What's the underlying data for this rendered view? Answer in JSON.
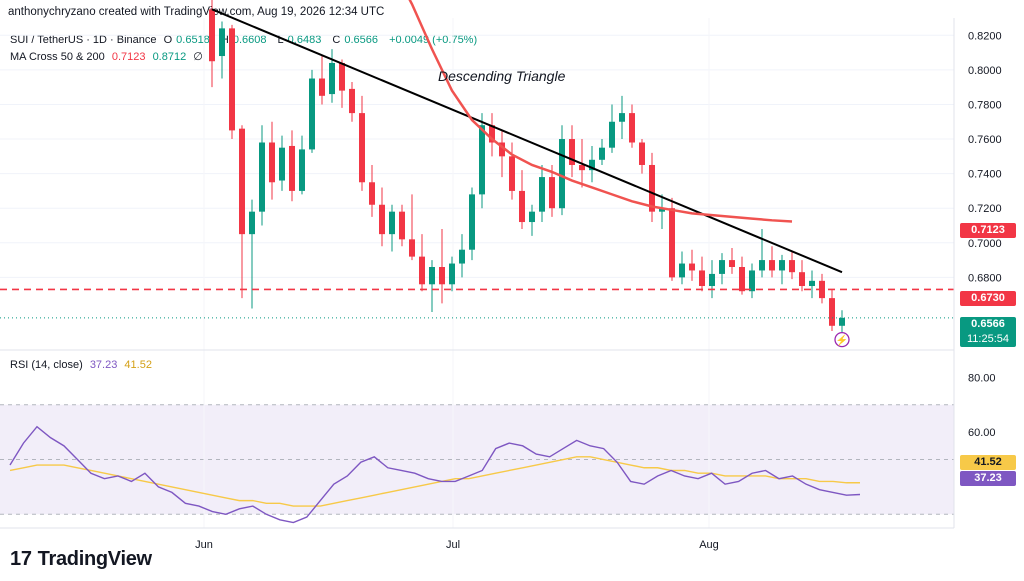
{
  "header": "anthonychryzano created with TradingView.com, Aug 19, 2026 12:34 UTC",
  "legend": {
    "symbol": "SUI / TetherUS · 1D · Binance",
    "open_label": "O",
    "open": "0.6518",
    "high_label": "H",
    "high": "0.6608",
    "low_label": "L",
    "low": "0.6483",
    "close_label": "C",
    "close": "0.6566",
    "change": "+0.0049 (+0.75%)",
    "ma_label": "MA Cross 50 & 200",
    "ma_fast": "0.7123",
    "ma_slow": "0.8712",
    "ma_suffix": "∅",
    "rsi_label": "RSI (14, close)",
    "rsi": "37.23",
    "rsi_ma": "41.52"
  },
  "tags": {
    "ma": "0.7123",
    "support": "0.6730",
    "price": "0.6566",
    "countdown": "11:25:54",
    "rsi_ma": "41.52",
    "rsi": "37.23"
  },
  "brand": {
    "mark": "17",
    "name": "TradingView"
  },
  "colors": {
    "up": "#089981",
    "down": "#f23645",
    "ma": "#f05350",
    "rsi": "#7e57c2",
    "rsi_ma": "#f7c948",
    "trend": "#000000",
    "band": "#ede7f6"
  },
  "chart_data": [
    {
      "type": "candlestick",
      "title": "SUI / TetherUS · 1D · Binance",
      "annotation": "Descending Triangle",
      "y_ticks": [
        "0.8200",
        "0.8000",
        "0.7800",
        "0.7600",
        "0.7400",
        "0.7200",
        "0.7000",
        "0.6800"
      ],
      "ylim": [
        0.638,
        0.83
      ],
      "x_ticks": [
        "Jun",
        "Jul",
        "Aug"
      ],
      "support_level": 0.673,
      "candles": [
        [
          0.835,
          0.842,
          0.79,
          0.805
        ],
        [
          0.808,
          0.828,
          0.795,
          0.824
        ],
        [
          0.824,
          0.826,
          0.76,
          0.765
        ],
        [
          0.766,
          0.768,
          0.668,
          0.705
        ],
        [
          0.705,
          0.725,
          0.662,
          0.718
        ],
        [
          0.718,
          0.768,
          0.71,
          0.758
        ],
        [
          0.758,
          0.77,
          0.725,
          0.735
        ],
        [
          0.736,
          0.762,
          0.73,
          0.755
        ],
        [
          0.756,
          0.765,
          0.724,
          0.73
        ],
        [
          0.73,
          0.762,
          0.728,
          0.754
        ],
        [
          0.754,
          0.8,
          0.752,
          0.795
        ],
        [
          0.795,
          0.808,
          0.78,
          0.785
        ],
        [
          0.786,
          0.812,
          0.781,
          0.804
        ],
        [
          0.804,
          0.806,
          0.778,
          0.788
        ],
        [
          0.789,
          0.793,
          0.77,
          0.775
        ],
        [
          0.775,
          0.785,
          0.73,
          0.735
        ],
        [
          0.735,
          0.745,
          0.715,
          0.722
        ],
        [
          0.722,
          0.732,
          0.698,
          0.705
        ],
        [
          0.705,
          0.722,
          0.695,
          0.718
        ],
        [
          0.718,
          0.722,
          0.698,
          0.702
        ],
        [
          0.702,
          0.728,
          0.69,
          0.692
        ],
        [
          0.692,
          0.705,
          0.672,
          0.676
        ],
        [
          0.676,
          0.69,
          0.66,
          0.686
        ],
        [
          0.686,
          0.708,
          0.665,
          0.676
        ],
        [
          0.676,
          0.692,
          0.672,
          0.688
        ],
        [
          0.688,
          0.705,
          0.68,
          0.696
        ],
        [
          0.696,
          0.732,
          0.69,
          0.728
        ],
        [
          0.728,
          0.775,
          0.72,
          0.768
        ],
        [
          0.768,
          0.775,
          0.75,
          0.758
        ],
        [
          0.758,
          0.765,
          0.738,
          0.75
        ],
        [
          0.75,
          0.758,
          0.725,
          0.73
        ],
        [
          0.73,
          0.742,
          0.708,
          0.712
        ],
        [
          0.712,
          0.722,
          0.704,
          0.718
        ],
        [
          0.718,
          0.745,
          0.712,
          0.738
        ],
        [
          0.738,
          0.745,
          0.715,
          0.72
        ],
        [
          0.72,
          0.768,
          0.716,
          0.76
        ],
        [
          0.76,
          0.768,
          0.738,
          0.745
        ],
        [
          0.745,
          0.76,
          0.732,
          0.742
        ],
        [
          0.742,
          0.756,
          0.735,
          0.748
        ],
        [
          0.748,
          0.76,
          0.745,
          0.755
        ],
        [
          0.755,
          0.78,
          0.752,
          0.77
        ],
        [
          0.77,
          0.785,
          0.76,
          0.775
        ],
        [
          0.775,
          0.78,
          0.755,
          0.758
        ],
        [
          0.758,
          0.76,
          0.74,
          0.745
        ],
        [
          0.745,
          0.752,
          0.712,
          0.718
        ],
        [
          0.718,
          0.728,
          0.708,
          0.72
        ],
        [
          0.72,
          0.726,
          0.678,
          0.68
        ],
        [
          0.68,
          0.695,
          0.676,
          0.688
        ],
        [
          0.688,
          0.696,
          0.678,
          0.684
        ],
        [
          0.684,
          0.692,
          0.672,
          0.675
        ],
        [
          0.675,
          0.69,
          0.668,
          0.682
        ],
        [
          0.682,
          0.694,
          0.676,
          0.69
        ],
        [
          0.69,
          0.697,
          0.682,
          0.686
        ],
        [
          0.686,
          0.692,
          0.67,
          0.672
        ],
        [
          0.672,
          0.688,
          0.668,
          0.684
        ],
        [
          0.684,
          0.708,
          0.68,
          0.69
        ],
        [
          0.69,
          0.698,
          0.68,
          0.684
        ],
        [
          0.684,
          0.693,
          0.676,
          0.69
        ],
        [
          0.69,
          0.695,
          0.679,
          0.683
        ],
        [
          0.683,
          0.69,
          0.672,
          0.675
        ],
        [
          0.675,
          0.684,
          0.668,
          0.678
        ],
        [
          0.678,
          0.682,
          0.665,
          0.668
        ],
        [
          0.668,
          0.673,
          0.649,
          0.652
        ],
        [
          0.652,
          0.661,
          0.648,
          0.6566
        ]
      ],
      "ma50": [
        [
          18,
          0.86
        ],
        [
          20,
          0.838
        ],
        [
          22,
          0.812
        ],
        [
          24,
          0.788
        ],
        [
          26,
          0.771
        ],
        [
          28,
          0.76
        ],
        [
          30,
          0.751
        ],
        [
          32,
          0.745
        ],
        [
          34,
          0.741
        ],
        [
          36,
          0.736
        ],
        [
          38,
          0.732
        ],
        [
          40,
          0.728
        ],
        [
          42,
          0.724
        ],
        [
          44,
          0.721
        ],
        [
          46,
          0.719
        ],
        [
          48,
          0.717
        ],
        [
          50,
          0.716
        ],
        [
          52,
          0.715
        ],
        [
          54,
          0.714
        ],
        [
          56,
          0.713
        ],
        [
          58,
          0.7123
        ]
      ],
      "trendline": [
        [
          0.835,
          0
        ],
        [
          0.683,
          63
        ]
      ]
    },
    {
      "type": "line",
      "title": "RSI (14, close)",
      "y_ticks": [
        "80.00",
        "60.00"
      ],
      "ylim": [
        25,
        90
      ],
      "band": [
        30,
        70
      ],
      "series": [
        {
          "name": "RSI",
          "values": [
            48,
            56,
            62,
            58,
            55,
            50,
            45,
            43,
            44,
            42,
            45,
            40,
            38,
            34,
            33,
            31,
            30,
            32,
            33,
            30,
            28,
            27,
            29,
            35,
            41,
            44,
            49,
            51,
            47,
            46,
            45,
            43,
            42,
            42,
            44,
            46,
            54,
            56,
            55,
            52,
            51,
            54,
            57,
            55,
            54,
            49,
            42,
            41,
            44,
            46,
            44,
            43,
            45,
            41,
            42,
            45,
            46,
            43,
            44,
            41,
            39,
            38,
            37,
            37.23
          ]
        },
        {
          "name": "MA",
          "values": [
            46,
            47,
            48,
            48,
            48,
            47,
            46,
            45,
            44,
            43,
            42,
            41,
            40,
            39,
            38,
            37,
            36,
            35,
            35,
            34,
            34,
            33,
            33,
            33,
            34,
            35,
            36,
            37,
            38,
            39,
            40,
            41,
            42,
            43,
            43,
            44,
            45,
            46,
            47,
            48,
            49,
            50,
            51,
            51,
            50,
            49,
            48,
            47,
            47,
            46,
            46,
            45,
            45,
            44,
            44,
            44,
            44,
            43,
            43,
            43,
            42,
            42,
            41.52,
            41.52
          ]
        }
      ]
    }
  ]
}
